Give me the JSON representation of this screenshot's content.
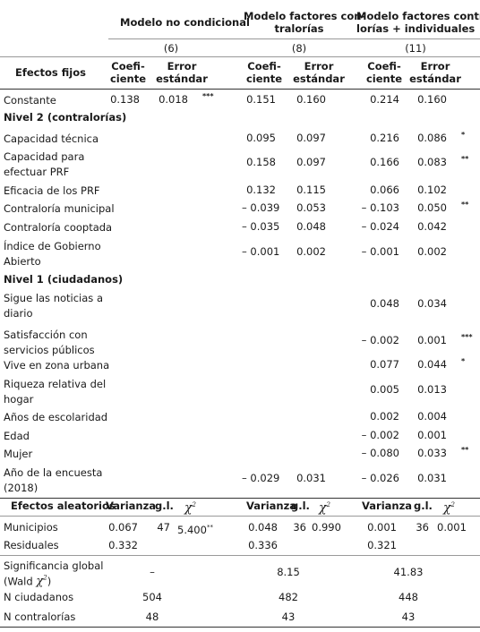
{
  "header": {
    "model1": "Modelo no condicional",
    "model2_l1": "Modelo factores con-",
    "model2_l2": "tralorías",
    "model3_l1": "Modelo factores contra-",
    "model3_l2": "lorías + individuales",
    "num1": "(6)",
    "num2": "(8)",
    "num3": "(11)",
    "fixed_effects": "Efectos fijos",
    "coef_l1": "Coefi-",
    "coef_l2": "ciente",
    "err_l1": "Error",
    "err_l2": "estándar"
  },
  "fixed_rows": [
    {
      "label": [
        "Constante"
      ],
      "m1c": "0.138",
      "m1e": "0.018",
      "m1s": "***",
      "m2c": "0.151",
      "m2e": "0.160",
      "m2s": "",
      "m3c": "0.214",
      "m3e": "0.160",
      "m3s": ""
    },
    {
      "section": "Nivel 2 (contralorías)"
    },
    {
      "label": [
        "Capacidad técnica"
      ],
      "m1c": "",
      "m1e": "",
      "m1s": "",
      "m2c": "0.095",
      "m2e": "0.097",
      "m2s": "",
      "m3c": "0.216",
      "m3e": "0.086",
      "m3s": "*"
    },
    {
      "label": [
        "Capacidad para",
        "efectuar PRF"
      ],
      "m1c": "",
      "m1e": "",
      "m1s": "",
      "m2c": "0.158",
      "m2e": "0.097",
      "m2s": "",
      "m3c": "0.166",
      "m3e": "0.083",
      "m3s": "**"
    },
    {
      "label": [
        "Eficacia de los PRF"
      ],
      "m1c": "",
      "m1e": "",
      "m1s": "",
      "m2c": "0.132",
      "m2e": "0.115",
      "m2s": "",
      "m3c": "0.066",
      "m3e": "0.102",
      "m3s": ""
    },
    {
      "label": [
        "Contraloría municipal"
      ],
      "m1c": "",
      "m1e": "",
      "m1s": "",
      "m2c": "– 0.039",
      "m2e": "0.053",
      "m2s": "",
      "m3c": "– 0.103",
      "m3e": "0.050",
      "m3s": "**"
    },
    {
      "label": [
        "Contraloría cooptada"
      ],
      "m1c": "",
      "m1e": "",
      "m1s": "",
      "m2c": "– 0.035",
      "m2e": "0.048",
      "m2s": "",
      "m3c": "– 0.024",
      "m3e": "0.042",
      "m3s": ""
    },
    {
      "label": [
        "Índice de Gobierno",
        "Abierto"
      ],
      "m1c": "",
      "m1e": "",
      "m1s": "",
      "m2c": "– 0.001",
      "m2e": "0.002",
      "m2s": "",
      "m3c": "– 0.001",
      "m3e": "0.002",
      "m3s": ""
    },
    {
      "section": "Nivel 1 (ciudadanos)"
    },
    {
      "label": [
        "Sigue las noticias a",
        "diario"
      ],
      "m1c": "",
      "m1e": "",
      "m1s": "",
      "m2c": "",
      "m2e": "",
      "m2s": "",
      "m3c": "0.048",
      "m3e": "0.034",
      "m3s": ""
    },
    {
      "label": [
        "Satisfacción con",
        "servicios públicos"
      ],
      "m1c": "",
      "m1e": "",
      "m1s": "",
      "m2c": "",
      "m2e": "",
      "m2s": "",
      "m3c": "– 0.002",
      "m3e": "0.001",
      "m3s": "***"
    },
    {
      "label": [
        "Vive en zona urbana"
      ],
      "m1c": "",
      "m1e": "",
      "m1s": "",
      "m2c": "",
      "m2e": "",
      "m2s": "",
      "m3c": "0.077",
      "m3e": "0.044",
      "m3s": "*"
    },
    {
      "label": [
        "Riqueza relativa del",
        "hogar"
      ],
      "m1c": "",
      "m1e": "",
      "m1s": "",
      "m2c": "",
      "m2e": "",
      "m2s": "",
      "m3c": "0.005",
      "m3e": "0.013",
      "m3s": ""
    },
    {
      "label": [
        "Años de escolaridad"
      ],
      "m1c": "",
      "m1e": "",
      "m1s": "",
      "m2c": "",
      "m2e": "",
      "m2s": "",
      "m3c": "0.002",
      "m3e": "0.004",
      "m3s": ""
    },
    {
      "label": [
        "Edad"
      ],
      "m1c": "",
      "m1e": "",
      "m1s": "",
      "m2c": "",
      "m2e": "",
      "m2s": "",
      "m3c": "– 0.002",
      "m3e": "0.001",
      "m3s": ""
    },
    {
      "label": [
        "Mujer"
      ],
      "m1c": "",
      "m1e": "",
      "m1s": "",
      "m2c": "",
      "m2e": "",
      "m2s": "",
      "m3c": "– 0.080",
      "m3e": "0.033",
      "m3s": "**"
    },
    {
      "label": [
        "Año de la encuesta",
        "(2018)"
      ],
      "m1c": "",
      "m1e": "",
      "m1s": "",
      "m2c": "– 0.029",
      "m2e": "0.031",
      "m2s": "",
      "m3c": "– 0.026",
      "m3e": "0.031",
      "m3s": ""
    }
  ],
  "random": {
    "title": "Efectos aleatorios",
    "varianza": "Varianza",
    "gl": "g.l.",
    "chi": "χ",
    "chi_sup": "2",
    "rows": [
      {
        "label": "Municipios",
        "v1": "0.067",
        "g1": "47",
        "x1": "5.400",
        "s1": "**",
        "v2": "0.048",
        "g2": "36",
        "x2": "0.990",
        "v3": "0.001",
        "g3": "36",
        "x3": "0.001"
      },
      {
        "label": "Residuales",
        "v1": "0.332",
        "g1": "",
        "x1": "",
        "s1": "",
        "v2": "0.336",
        "g2": "",
        "x2": "",
        "v3": "0.321",
        "g3": "",
        "x3": ""
      }
    ]
  },
  "footer": {
    "sig_l1": "Significancia global",
    "sig_l2_pre": "(Wald ",
    "sig_l2_post": ")",
    "sig1": "–",
    "sig2": "8.15",
    "sig3": "41.83",
    "nc_label": "N ciudadanos",
    "nc1": "504",
    "nc2": "482",
    "nc3": "448",
    "ncon_label": "N contralorías",
    "ncon1": "48",
    "ncon2": "43",
    "ncon3": "43"
  }
}
